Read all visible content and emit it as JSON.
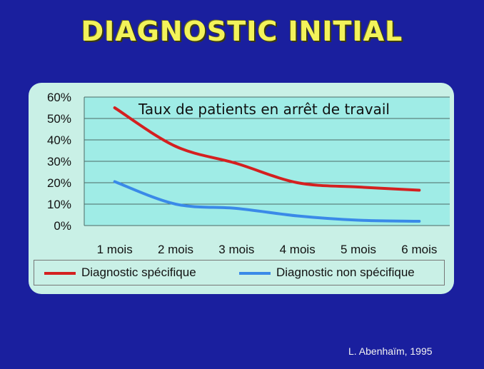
{
  "title": "DIAGNOSTIC INITIAL",
  "source": "L. Abenhaïm, 1995",
  "colors": {
    "background": "#1a1f9e",
    "panel": "#c9f0e6",
    "plot_area": "#9fece6",
    "title": "#f3f35a",
    "series_specific": "#d42020",
    "series_non_specific": "#3a8ae8"
  },
  "chart_data": {
    "type": "line",
    "title": "Taux de patients en arrêt de travail",
    "categories": [
      "1 mois",
      "2 mois",
      "3 mois",
      "4 mois",
      "5 mois",
      "6 mois"
    ],
    "series": [
      {
        "name": "Diagnostic spécifique",
        "values": [
          55,
          37,
          29,
          20,
          18,
          16.5
        ]
      },
      {
        "name": "Diagnostic non spécifique",
        "values": [
          20.5,
          10,
          8,
          4.5,
          2.5,
          2
        ]
      }
    ],
    "ylim": [
      0,
      60
    ],
    "yticks": [
      "0%",
      "10%",
      "20%",
      "30%",
      "40%",
      "50%",
      "60%"
    ],
    "xlabel": "",
    "ylabel": "",
    "grid": true,
    "legend_position": "bottom"
  }
}
